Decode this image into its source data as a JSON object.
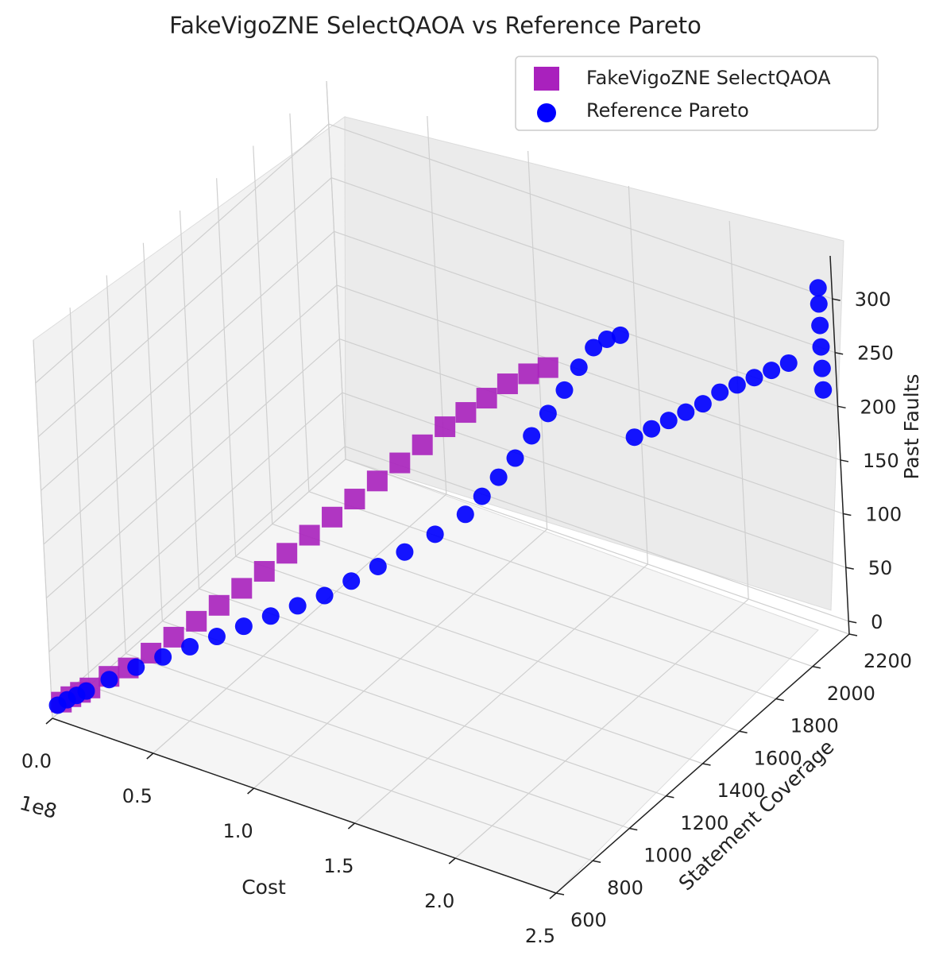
{
  "chart_data": {
    "type": "scatter3d",
    "title": "FakeVigoZNE SelectQAOA vs Reference Pareto",
    "xlabel": "Cost",
    "ylabel": "Statement Coverage",
    "zlabel": "Past Faults",
    "x_offset_label": "1e8",
    "xlim": [
      0,
      2.5
    ],
    "ylim": [
      600,
      2200
    ],
    "zlim": [
      0,
      300
    ],
    "x_ticks": [
      "0.0",
      "0.5",
      "1.0",
      "1.5",
      "2.0",
      "2.5"
    ],
    "y_ticks": [
      "600",
      "800",
      "1000",
      "1200",
      "1400",
      "1600",
      "1800",
      "2000",
      "2200"
    ],
    "z_ticks": [
      "0",
      "50",
      "100",
      "150",
      "200",
      "250",
      "300"
    ],
    "legend_position": "top-right",
    "series": [
      {
        "name": "FakeVigoZNE SelectQAOA",
        "marker": "square",
        "color": "#a921bd",
        "points": [
          [
            0.03,
            620,
            2
          ],
          [
            0.06,
            640,
            6
          ],
          [
            0.09,
            660,
            9
          ],
          [
            0.12,
            680,
            12
          ],
          [
            0.2,
            700,
            25
          ],
          [
            0.28,
            720,
            35
          ],
          [
            0.36,
            760,
            48
          ],
          [
            0.44,
            800,
            62
          ],
          [
            0.52,
            840,
            76
          ],
          [
            0.6,
            880,
            90
          ],
          [
            0.68,
            920,
            105
          ],
          [
            0.76,
            960,
            120
          ],
          [
            0.84,
            1000,
            136
          ],
          [
            0.92,
            1040,
            152
          ],
          [
            1.0,
            1080,
            168
          ],
          [
            1.08,
            1120,
            184
          ],
          [
            1.16,
            1160,
            200
          ],
          [
            1.24,
            1200,
            216
          ],
          [
            1.32,
            1240,
            232
          ],
          [
            1.4,
            1280,
            248
          ],
          [
            1.48,
            1310,
            262
          ],
          [
            1.56,
            1340,
            276
          ],
          [
            1.64,
            1370,
            290
          ],
          [
            1.72,
            1400,
            300
          ],
          [
            1.8,
            1420,
            308
          ]
        ]
      },
      {
        "name": "Reference Pareto",
        "marker": "circle",
        "color": "#0000ff",
        "points": [
          [
            0.02,
            610,
            0
          ],
          [
            0.05,
            630,
            4
          ],
          [
            0.08,
            650,
            7
          ],
          [
            0.11,
            670,
            10
          ],
          [
            0.2,
            700,
            22
          ],
          [
            0.3,
            740,
            34
          ],
          [
            0.4,
            780,
            44
          ],
          [
            0.5,
            820,
            54
          ],
          [
            0.6,
            860,
            64
          ],
          [
            0.7,
            900,
            74
          ],
          [
            0.8,
            940,
            84
          ],
          [
            0.9,
            980,
            94
          ],
          [
            1.0,
            1020,
            104
          ],
          [
            1.1,
            1060,
            118
          ],
          [
            1.2,
            1100,
            132
          ],
          [
            1.3,
            1140,
            146
          ],
          [
            1.4,
            1200,
            160
          ],
          [
            1.5,
            1260,
            176
          ],
          [
            1.55,
            1300,
            190
          ],
          [
            1.6,
            1340,
            205
          ],
          [
            1.65,
            1380,
            220
          ],
          [
            1.7,
            1420,
            238
          ],
          [
            1.75,
            1460,
            256
          ],
          [
            1.8,
            1500,
            275
          ],
          [
            1.85,
            1530,
            295
          ],
          [
            1.9,
            1560,
            312
          ],
          [
            1.95,
            1580,
            320
          ],
          [
            2.0,
            1600,
            324
          ],
          [
            1.9,
            1750,
            200
          ],
          [
            1.95,
            1790,
            205
          ],
          [
            2.0,
            1830,
            210
          ],
          [
            2.05,
            1870,
            215
          ],
          [
            2.1,
            1910,
            220
          ],
          [
            2.15,
            1950,
            228
          ],
          [
            2.2,
            1990,
            232
          ],
          [
            2.25,
            2030,
            236
          ],
          [
            2.3,
            2070,
            240
          ],
          [
            2.35,
            2110,
            244
          ],
          [
            2.45,
            2180,
            215
          ],
          [
            2.45,
            2180,
            235
          ],
          [
            2.45,
            2180,
            255
          ],
          [
            2.45,
            2180,
            275
          ],
          [
            2.45,
            2180,
            295
          ],
          [
            2.45,
            2180,
            310
          ]
        ]
      }
    ]
  }
}
